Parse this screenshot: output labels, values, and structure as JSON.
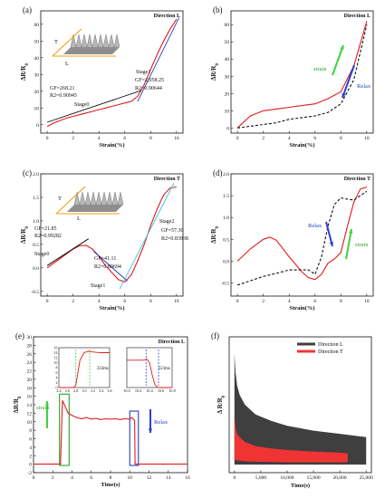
{
  "chart_data": [
    {
      "panel": "(a)",
      "type": "line",
      "annotation": "Direction L",
      "xlabel": "Strain(%)",
      "ylabel": "ΔR/R0",
      "xlim": [
        -0.5,
        10.5
      ],
      "ylim": [
        -5,
        68
      ],
      "xticks": [
        "0",
        "2",
        "4",
        "6",
        "8",
        "10"
      ],
      "yticks": [
        "0",
        "10",
        "20",
        "30",
        "40",
        "50",
        "60"
      ],
      "inset_labels": [
        "T",
        "L"
      ],
      "series": [
        {
          "role": "data",
          "color": "#e31a1c",
          "x": [
            0,
            0.5,
            1,
            1.5,
            2,
            2.5,
            3,
            3.5,
            4,
            4.5,
            5,
            5.5,
            6,
            6.5,
            7,
            7.5,
            8,
            8.5,
            9,
            9.5,
            10
          ],
          "y": [
            -1,
            1,
            2.5,
            4,
            5,
            6,
            7,
            8,
            9,
            10,
            11,
            12,
            13,
            14,
            17,
            24,
            33,
            42,
            50,
            57,
            63
          ]
        },
        {
          "role": "fit",
          "color": "#111111",
          "x": [
            0,
            7.3
          ],
          "y": [
            1.5,
            20.5
          ]
        },
        {
          "role": "fit",
          "color": "#2b3fb5",
          "x": [
            7.0,
            10.2
          ],
          "y": [
            14,
            64
          ]
        }
      ],
      "labels": [
        "Stage0",
        "GF=268.21",
        "R2=0.90945",
        "Stage1",
        "GF=2,058.25",
        "R2=0.90644"
      ]
    },
    {
      "panel": "(b)",
      "type": "line",
      "annotation": "Direction L",
      "xlabel": "Strain(%)",
      "ylabel": "ΔR/R0",
      "xlim": [
        -0.5,
        10.5
      ],
      "ylim": [
        -3,
        68
      ],
      "xticks": [
        "0",
        "2",
        "4",
        "6",
        "8",
        "10"
      ],
      "yticks": [
        "0",
        "10",
        "20",
        "30",
        "40",
        "50",
        "60"
      ],
      "series": [
        {
          "name": "strain",
          "color": "#e31a1c",
          "dash": false,
          "x": [
            0,
            1,
            2,
            3,
            4,
            5,
            6,
            7,
            8,
            9,
            10
          ],
          "y": [
            0,
            7,
            10,
            11,
            12,
            13,
            14,
            17,
            21,
            36,
            62
          ]
        },
        {
          "name": "Relax",
          "color": "#111111",
          "dash": true,
          "x": [
            0,
            1,
            2,
            3,
            4,
            5,
            6,
            7,
            8,
            9,
            10
          ],
          "y": [
            0,
            1,
            2,
            3,
            5,
            6,
            7,
            9,
            14,
            28,
            60
          ]
        }
      ],
      "labels": [
        "strain",
        "Relax"
      ]
    },
    {
      "panel": "(c)",
      "type": "line",
      "annotation": "Direction T",
      "xlabel": "Strain(%)",
      "ylabel": "ΔR/R0",
      "xlim": [
        -0.5,
        10.5
      ],
      "ylim": [
        -0.6,
        2.0
      ],
      "xticks": [
        "0",
        "2",
        "4",
        "6",
        "8",
        "10"
      ],
      "yticks": [
        "-0.5",
        "0.0",
        "0.5",
        "1.0",
        "1.5",
        "2.0"
      ],
      "inset_labels": [
        "T",
        "L"
      ],
      "series": [
        {
          "role": "data",
          "color": "#e31a1c",
          "x": [
            0,
            0.5,
            1,
            1.5,
            2,
            2.5,
            3,
            3.5,
            4,
            4.5,
            5,
            5.5,
            6,
            6.5,
            7,
            7.5,
            8,
            8.5,
            9,
            9.5,
            10
          ],
          "y": [
            0.0,
            0.1,
            0.2,
            0.3,
            0.4,
            0.47,
            0.48,
            0.4,
            0.25,
            0.05,
            -0.1,
            -0.25,
            -0.3,
            -0.15,
            0.15,
            0.5,
            0.9,
            1.25,
            1.55,
            1.7,
            1.72
          ]
        },
        {
          "role": "fit",
          "color": "#111111",
          "x": [
            0,
            3.2
          ],
          "y": [
            0.05,
            0.62
          ]
        },
        {
          "role": "fit",
          "color": "#2b3fb5",
          "x": [
            3.6,
            6.2
          ],
          "y": [
            0.35,
            -0.28
          ]
        },
        {
          "role": "fit",
          "color": "#46c8e0",
          "x": [
            5.6,
            9.8
          ],
          "y": [
            -0.45,
            1.8
          ]
        }
      ],
      "labels": [
        "Stage0",
        "GF=21.85",
        "R2=0.99282",
        "Stage1",
        "GF=41.11",
        "R2=0.89694",
        "Stage2",
        "GF=57.30",
        "R2=0.83938"
      ]
    },
    {
      "panel": "(d)",
      "type": "line",
      "annotation": "Direction T",
      "xlabel": "Strain(%)",
      "ylabel": "ΔR/R0",
      "xlim": [
        -0.5,
        10.5
      ],
      "ylim": [
        -0.8,
        2.0
      ],
      "xticks": [
        "0",
        "2",
        "4",
        "6",
        "8",
        "10"
      ],
      "yticks": [
        "-0.5",
        "0.0",
        "0.5",
        "1.0",
        "1.5",
        "2.0"
      ],
      "series": [
        {
          "name": "strain",
          "color": "#e31a1c",
          "dash": false,
          "x": [
            0,
            1,
            2,
            2.5,
            3,
            4,
            5,
            5.5,
            6,
            6.5,
            7,
            7.5,
            8,
            8.5,
            9,
            9.5,
            10
          ],
          "y": [
            0.0,
            0.28,
            0.5,
            0.55,
            0.48,
            0.1,
            -0.25,
            -0.38,
            -0.42,
            -0.3,
            -0.05,
            0.05,
            0.2,
            0.8,
            1.35,
            1.65,
            1.7
          ]
        },
        {
          "name": "Relax",
          "color": "#111111",
          "dash": true,
          "x": [
            0,
            1,
            2,
            3,
            4,
            5,
            5.5,
            6,
            6.5,
            7,
            7.5,
            8,
            8.5,
            9,
            9.5,
            10
          ],
          "y": [
            -0.55,
            -0.45,
            -0.35,
            -0.28,
            -0.2,
            -0.2,
            -0.2,
            -0.3,
            0.1,
            0.8,
            1.3,
            1.45,
            1.42,
            1.4,
            1.5,
            1.6
          ]
        }
      ],
      "labels": [
        "Relax",
        "strain"
      ]
    },
    {
      "panel": "(e)",
      "type": "line",
      "annotation": "Direction L",
      "xlabel": "Time(s)",
      "ylabel": "ΔR/R0",
      "xlim": [
        0,
        16
      ],
      "ylim": [
        -2,
        30
      ],
      "xticks": [
        "0",
        "2",
        "4",
        "6",
        "8",
        "10",
        "12",
        "14",
        "16"
      ],
      "yticks": [
        "-2",
        "0",
        "2",
        "4",
        "6",
        "8",
        "10",
        "12",
        "14",
        "16",
        "18",
        "20",
        "22",
        "24",
        "26",
        "28",
        "30"
      ],
      "series": [
        {
          "color": "#e31a1c",
          "x": [
            0,
            2,
            2.4,
            2.8,
            3.0,
            3.3,
            3.6,
            4.0,
            4.5,
            5,
            5.5,
            6,
            6.5,
            7,
            7.5,
            8,
            8.5,
            9,
            9.5,
            10,
            10.2,
            10.5,
            10.55,
            10.7,
            11,
            12,
            14,
            16
          ],
          "y": [
            0,
            0,
            0,
            0,
            15,
            13.5,
            12,
            11.5,
            11,
            10.7,
            11,
            10.6,
            10.8,
            10.5,
            10.7,
            10.6,
            10.7,
            10.5,
            10.7,
            10.6,
            11,
            10.3,
            0,
            0,
            0,
            0,
            0,
            0
          ]
        }
      ],
      "boxes": [
        {
          "color": "#2ca02c",
          "x0": 2.7,
          "x1": 3.7,
          "y0": -0.3,
          "y1": 16.5
        },
        {
          "color": "#1f3fbf",
          "x0": 10.0,
          "x1": 10.9,
          "y0": -0.3,
          "y1": 12.5
        }
      ],
      "labels": [
        "strain",
        "Relax"
      ],
      "insets": [
        {
          "xlim": [
            2.4,
            3.6
          ],
          "ylim": [
            0,
            16
          ],
          "xticks": [
            "2.4",
            "2.6",
            "2.8",
            "3.0",
            "3.2",
            "3.4",
            "3.6"
          ],
          "yticks": [
            "0",
            "2",
            "4",
            "6",
            "8",
            "10",
            "12",
            "14",
            "16"
          ],
          "x": [
            2.4,
            2.75,
            2.8,
            2.85,
            2.9,
            3.0,
            3.1,
            3.2,
            3.3,
            3.4,
            3.6
          ],
          "y": [
            0,
            0,
            1,
            6,
            11,
            14,
            14.6,
            14.3,
            14.1,
            14,
            14
          ],
          "vlines": [
            2.8,
            3.13
          ],
          "label": "333ms"
        },
        {
          "xlim": [
            10.0,
            10.8
          ],
          "ylim": [
            0,
            16
          ],
          "xticks": [
            "10.0",
            "10.2",
            "10.4",
            "10.6",
            "10.8"
          ],
          "x": [
            10.0,
            10.2,
            10.3,
            10.35,
            10.4,
            10.45,
            10.5,
            10.55,
            10.8
          ],
          "y": [
            11,
            11,
            11,
            11.5,
            10,
            5,
            1,
            0,
            0
          ],
          "vlines": [
            10.34,
            10.56
          ],
          "label": "223ms"
        }
      ]
    },
    {
      "panel": "(f)",
      "type": "area",
      "xlabel": "Time(s)",
      "ylabel": "Δ R/R0",
      "xlim": [
        -1000,
        26000
      ],
      "ylim": [
        -0.2,
        4.0
      ],
      "xticks": [
        "0",
        "5,000",
        "10,000",
        "15,000",
        "20,000",
        "25,000"
      ],
      "series": [
        {
          "name": "Direction L",
          "color": "#3f3f3f",
          "x": [
            0,
            200,
            500,
            1000,
            2000,
            4000,
            7000,
            10000,
            15000,
            20000,
            25000
          ],
          "upper": [
            3.5,
            2.9,
            2.5,
            2.2,
            1.9,
            1.6,
            1.4,
            1.25,
            1.1,
            1.0,
            0.9
          ],
          "lower": [
            0.05,
            0.05,
            0.05,
            0.05,
            0.05,
            0.05,
            0.05,
            0.05,
            0.05,
            0.05,
            0.05
          ]
        },
        {
          "name": "Direction T",
          "color": "#f03434",
          "x": [
            0,
            200,
            500,
            1000,
            2000,
            4000,
            7000,
            10000,
            15000,
            20000,
            21500
          ],
          "upper": [
            1.6,
            1.2,
            1.0,
            0.9,
            0.75,
            0.62,
            0.55,
            0.5,
            0.45,
            0.42,
            0.4
          ],
          "lower": [
            0.2,
            0.2,
            0.18,
            0.17,
            0.15,
            0.14,
            0.13,
            0.12,
            0.12,
            0.12,
            0.12
          ]
        }
      ]
    }
  ]
}
